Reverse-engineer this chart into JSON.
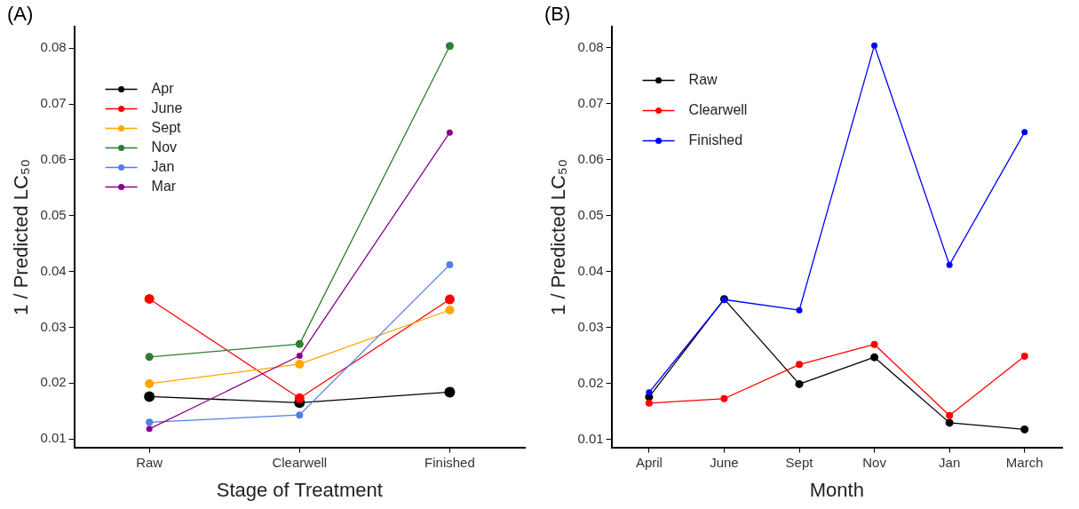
{
  "chart_data": [
    {
      "type": "line",
      "title": "(A)",
      "xlabel": "Stage of Treatment",
      "ylabel": "1 / Predicted LC₅₀",
      "categories": [
        "Raw",
        "Clearwell",
        "Finished"
      ],
      "ylim": [
        0.0085,
        0.0838
      ],
      "yticks": [
        0.01,
        0.02,
        0.03,
        0.04,
        0.05,
        0.06,
        0.07,
        0.08
      ],
      "marker": "circle",
      "legend": "top left",
      "grid": false,
      "series": [
        {
          "name": "Apr",
          "color": "#000000",
          "values": [
            0.0176,
            0.0165,
            0.0184
          ]
        },
        {
          "name": "June",
          "color": "#ff0000",
          "values": [
            0.0351,
            0.0173,
            0.035
          ]
        },
        {
          "name": "Sept",
          "color": "#ffa500",
          "values": [
            0.0199,
            0.0234,
            0.0331
          ]
        },
        {
          "name": "Nov",
          "color": "#2e7d32",
          "values": [
            0.0247,
            0.027,
            0.0804
          ]
        },
        {
          "name": "Jan",
          "color": "#4f7fe8",
          "values": [
            0.013,
            0.0143,
            0.0412
          ]
        },
        {
          "name": "Mar",
          "color": "#8b008b",
          "values": [
            0.0118,
            0.0249,
            0.0649
          ]
        }
      ]
    },
    {
      "type": "line",
      "title": "(B)",
      "xlabel": "Month",
      "ylabel": "1 / Predicted LC₅₀",
      "categories": [
        "April",
        "June",
        "Sept",
        "Nov",
        "Jan",
        "March"
      ],
      "ylim": [
        0.0086,
        0.0837
      ],
      "yticks": [
        0.01,
        0.02,
        0.03,
        0.04,
        0.05,
        0.06,
        0.07,
        0.08
      ],
      "marker": "circle",
      "legend": "top left",
      "grid": false,
      "series": [
        {
          "name": "Raw",
          "color": "#000000",
          "values": [
            0.0176,
            0.0351,
            0.0199,
            0.0247,
            0.013,
            0.0118
          ]
        },
        {
          "name": "Clearwell",
          "color": "#ff0000",
          "values": [
            0.0165,
            0.0173,
            0.0234,
            0.027,
            0.0143,
            0.0249
          ]
        },
        {
          "name": "Finished",
          "color": "#0000ff",
          "values": [
            0.0184,
            0.035,
            0.0331,
            0.0804,
            0.0412,
            0.0649
          ]
        }
      ]
    }
  ]
}
